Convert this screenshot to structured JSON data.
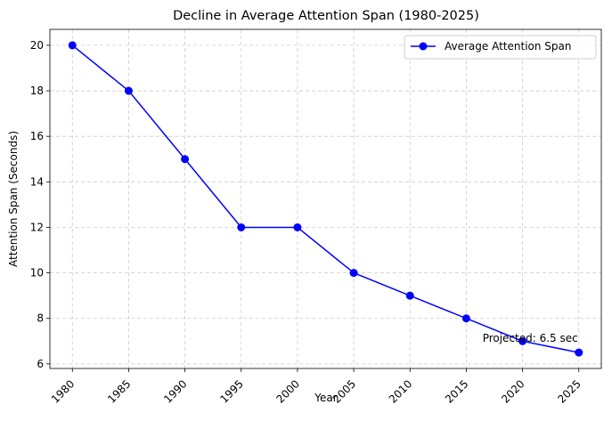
{
  "chart_data": {
    "type": "line",
    "title": "Decline in Average Attention Span (1980-2025)",
    "xlabel": "Year",
    "ylabel": "Attention Span (Seconds)",
    "x": [
      1980,
      1985,
      1990,
      1995,
      2000,
      2005,
      2010,
      2015,
      2020,
      2025
    ],
    "series": [
      {
        "name": "Average Attention Span",
        "values": [
          20,
          18,
          15,
          12,
          12,
          10,
          9,
          8,
          7,
          6.5
        ],
        "color": "#0000ff",
        "marker": "circle"
      }
    ],
    "y_ticks": [
      6,
      8,
      10,
      12,
      14,
      16,
      18,
      20
    ],
    "xlim": [
      1978,
      2027
    ],
    "ylim": [
      5.8,
      20.7
    ],
    "grid": true,
    "legend_position": "top-right",
    "annotations": [
      {
        "text": "Projected: 6.5 sec",
        "x": 2025,
        "y": 6.5
      }
    ]
  }
}
